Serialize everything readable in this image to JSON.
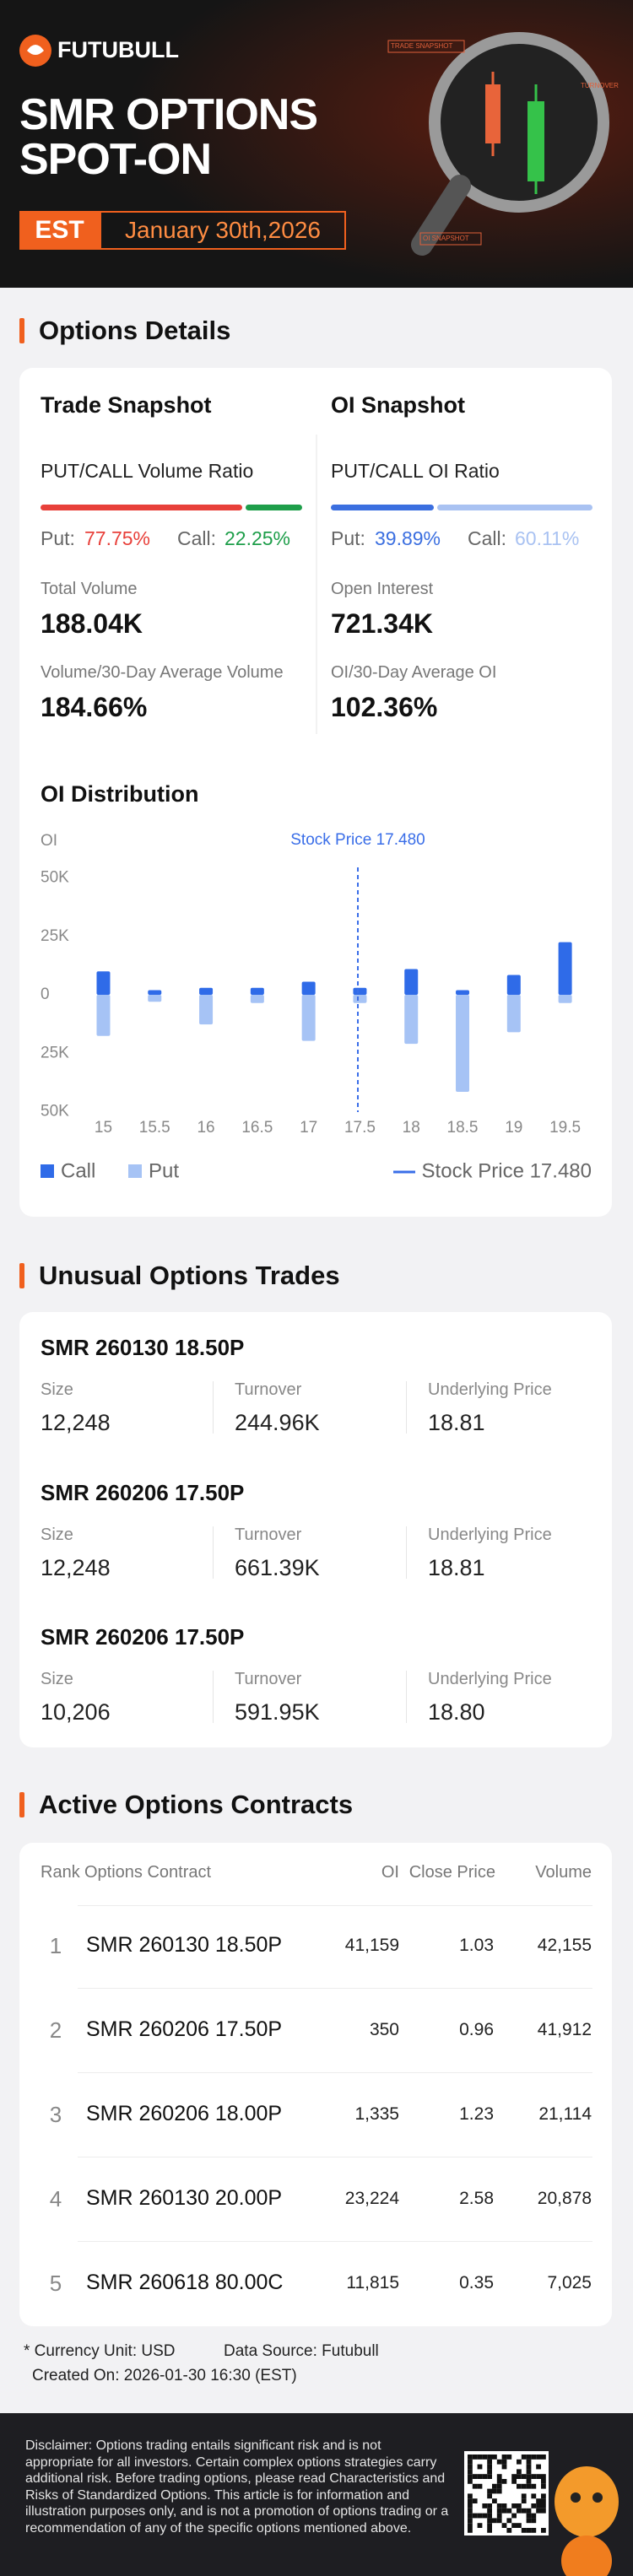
{
  "header": {
    "logo": "FUTUBULL",
    "title_line1": "SMR OPTIONS",
    "title_line2": "SPOT-ON",
    "timezone": "EST",
    "date": "January 30th,2026",
    "decor_labels": [
      "TRADE SNAPSHOT",
      "TURNOVER",
      "OI SNAPSHOT"
    ]
  },
  "options_details": {
    "heading": "Options Details",
    "snapshots": [
      {
        "title": "Trade Snapshot",
        "ratio_title": "PUT/CALL Volume Ratio",
        "put_label": "Put:",
        "put_value": 77.75,
        "put_value_label": "77.75%",
        "put_color": "#e8403a",
        "call_label": "Call:",
        "call_value": 22.25,
        "call_value_label": "22.25%",
        "call_color": "#1e9e4a",
        "metrics": [
          {
            "label": "Total Volume",
            "value": "188.04K"
          },
          {
            "label": "Volume/30-Day Average Volume",
            "value": "184.66%"
          }
        ]
      },
      {
        "title": "OI Snapshot",
        "ratio_title": "PUT/CALL OI Ratio",
        "put_label": "Put:",
        "put_value": 39.89,
        "put_value_label": "39.89%",
        "put_color": "#3b6fe0",
        "call_label": "Call:",
        "call_value": 60.11,
        "call_value_label": "60.11%",
        "call_color": "#a9c2f2",
        "metrics": [
          {
            "label": "Open Interest",
            "value": "721.34K"
          },
          {
            "label": "OI/30-Day Average OI",
            "value": "102.36%"
          }
        ]
      }
    ]
  },
  "chart_data": {
    "type": "bar",
    "title": "OI Distribution",
    "y_label": "OI",
    "diverging": true,
    "x": [
      15,
      15.5,
      16,
      16.5,
      17,
      17.5,
      18,
      18.5,
      19,
      19.5
    ],
    "xlim": [
      14.7,
      19.75
    ],
    "series": [
      {
        "name": "Call",
        "color": "#2f6be8",
        "values": [
          10000,
          2000,
          3000,
          3000,
          5600,
          3000,
          11000,
          2000,
          8500,
          22500
        ]
      },
      {
        "name": "Put",
        "color": "#a6c3f5",
        "values": [
          17600,
          3000,
          12700,
          3500,
          19700,
          3500,
          21000,
          41500,
          16000,
          3500
        ]
      }
    ],
    "ylim": [
      -50000,
      50000
    ],
    "yticks": [
      {
        "value": 50000,
        "label": "50K"
      },
      {
        "value": 25000,
        "label": "25K"
      },
      0,
      {
        "value": -25000,
        "label": "25K"
      },
      {
        "value": -50000,
        "label": "50K"
      }
    ],
    "grid": false,
    "stock_price": {
      "value": 17.48,
      "label": "Stock Price 17.480",
      "color": "#3a6ee8"
    }
  },
  "unusual_trades": {
    "heading": "Unusual Options Trades",
    "columns": [
      "Size",
      "Turnover",
      "Underlying Price"
    ],
    "items": [
      {
        "contract": "SMR 260130 18.50P",
        "values": [
          "12,248",
          "244.96K",
          "18.81"
        ]
      },
      {
        "contract": "SMR 260206 17.50P",
        "values": [
          "12,248",
          "661.39K",
          "18.81"
        ]
      },
      {
        "contract": "SMR 260206 17.50P",
        "values": [
          "10,206",
          "591.95K",
          "18.80"
        ]
      }
    ]
  },
  "active_contracts": {
    "heading": "Active Options Contracts",
    "columns": [
      "Rank",
      "Options Contract",
      "OI",
      "Close Price",
      "Volume"
    ],
    "rows": [
      [
        "1",
        "SMR 260130 18.50P",
        "41,159",
        "1.03",
        "42,155"
      ],
      [
        "2",
        "SMR 260206 17.50P",
        "350",
        "0.96",
        "41,912"
      ],
      [
        "3",
        "SMR 260206 18.00P",
        "1,335",
        "1.23",
        "21,114"
      ],
      [
        "4",
        "SMR 260130 20.00P",
        "23,224",
        "2.58",
        "20,878"
      ],
      [
        "5",
        "SMR 260618 80.00C",
        "11,815",
        "0.35",
        "7,025"
      ]
    ]
  },
  "footer": {
    "currency": "* Currency Unit: USD",
    "source": "Data Source: Futubull",
    "created": "Created On: 2026-01-30 16:30 (EST)",
    "disclaimer": "Disclaimer: Options trading entails significant risk and is not appropriate for all investors. Certain complex options strategies carry additional risk. Before trading options, please read Characteristics and Risks of Standardized Options. This article is for information and illustration purposes only, and is not a promotion of options trading or a recommendation of any of the specific options mentioned above."
  }
}
